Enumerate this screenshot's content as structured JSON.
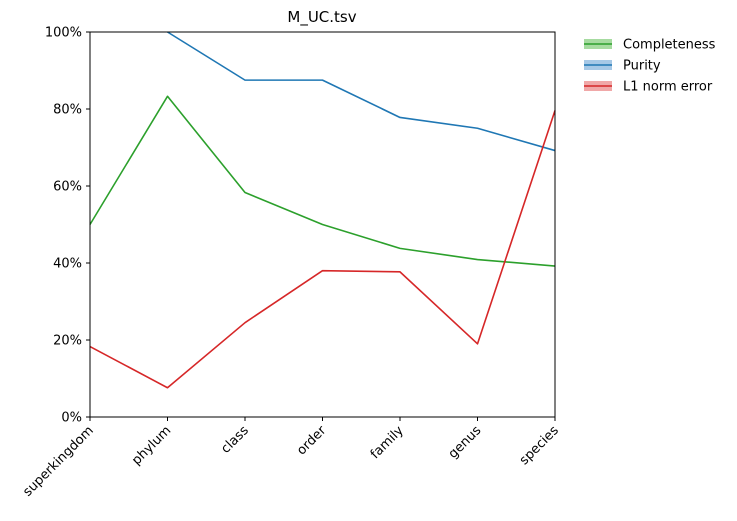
{
  "chart_data": {
    "type": "line",
    "title": "M_UC.tsv",
    "xlabel": "",
    "ylabel": "",
    "categories": [
      "superkingdom",
      "phylum",
      "class",
      "order",
      "family",
      "genus",
      "species"
    ],
    "ylim": [
      0,
      100
    ],
    "y_ticks": [
      "0%",
      "20%",
      "40%",
      "60%",
      "80%",
      "100%"
    ],
    "y_tick_values": [
      0,
      20,
      40,
      60,
      80,
      100
    ],
    "grid": false,
    "legend_position": "outside-top-right",
    "series": [
      {
        "name": "Completeness",
        "color": "#2ca02c",
        "band_color": "#a6dba0",
        "values": [
          50.0,
          83.3,
          58.3,
          50.0,
          43.8,
          40.9,
          39.2
        ]
      },
      {
        "name": "Purity",
        "color": "#1f77b4",
        "band_color": "#a6c8e6",
        "values": [
          null,
          100.0,
          87.5,
          87.5,
          77.8,
          75.0,
          69.2
        ]
      },
      {
        "name": "L1 norm error",
        "color": "#d62728",
        "band_color": "#f0a8a8",
        "values": [
          18.3,
          7.6,
          24.5,
          38.0,
          37.7,
          19.0,
          79.6
        ]
      }
    ]
  }
}
